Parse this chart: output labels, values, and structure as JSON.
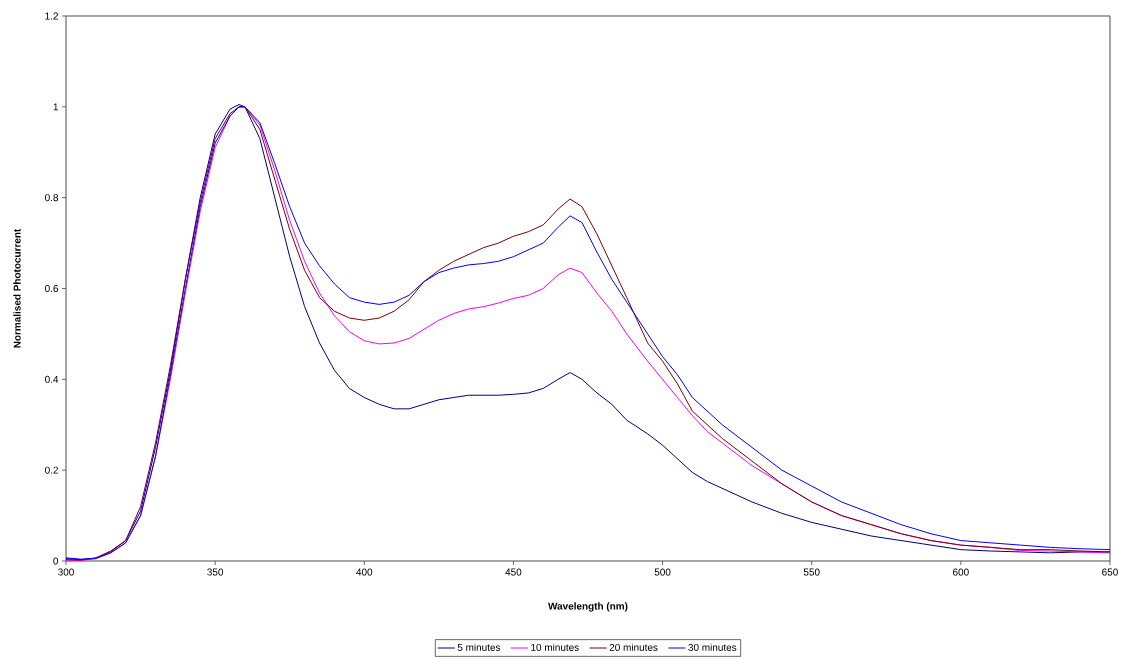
{
  "chart_data": {
    "type": "line",
    "xlabel": "Wavelength (nm)",
    "ylabel": "Normalised Photocurrent",
    "x": [
      300,
      305,
      310,
      315,
      320,
      325,
      330,
      335,
      340,
      345,
      350,
      355,
      358,
      360,
      365,
      370,
      375,
      380,
      385,
      390,
      395,
      400,
      405,
      410,
      415,
      420,
      425,
      430,
      435,
      440,
      445,
      450,
      455,
      460,
      465,
      469,
      473,
      478,
      483,
      488,
      495,
      500,
      505,
      510,
      515,
      520,
      530,
      540,
      550,
      560,
      570,
      580,
      590,
      600,
      610,
      620,
      630,
      640,
      650
    ],
    "series": [
      {
        "name": "5 minutes",
        "color": "#000080",
        "values": [
          0.005,
          0.003,
          0.006,
          0.02,
          0.045,
          0.11,
          0.25,
          0.42,
          0.62,
          0.8,
          0.94,
          0.995,
          1.005,
          1.0,
          0.93,
          0.8,
          0.67,
          0.56,
          0.48,
          0.42,
          0.38,
          0.36,
          0.345,
          0.335,
          0.335,
          0.345,
          0.355,
          0.36,
          0.365,
          0.365,
          0.365,
          0.367,
          0.37,
          0.38,
          0.4,
          0.415,
          0.4,
          0.37,
          0.345,
          0.31,
          0.28,
          0.255,
          0.225,
          0.195,
          0.175,
          0.16,
          0.13,
          0.105,
          0.085,
          0.07,
          0.055,
          0.045,
          0.035,
          0.025,
          0.022,
          0.02,
          0.018,
          0.02,
          0.02
        ]
      },
      {
        "name": "10 minutes",
        "color": "#ff00ff",
        "values": [
          0.002,
          0.001,
          0.005,
          0.018,
          0.04,
          0.1,
          0.23,
          0.4,
          0.59,
          0.77,
          0.91,
          0.98,
          1.0,
          1.0,
          0.96,
          0.86,
          0.75,
          0.66,
          0.59,
          0.54,
          0.505,
          0.485,
          0.478,
          0.48,
          0.49,
          0.51,
          0.53,
          0.545,
          0.555,
          0.56,
          0.568,
          0.578,
          0.585,
          0.6,
          0.63,
          0.645,
          0.635,
          0.59,
          0.55,
          0.5,
          0.44,
          0.4,
          0.36,
          0.32,
          0.285,
          0.26,
          0.21,
          0.17,
          0.13,
          0.1,
          0.08,
          0.06,
          0.045,
          0.035,
          0.03,
          0.023,
          0.022,
          0.02,
          0.018
        ]
      },
      {
        "name": "20 minutes",
        "color": "#800000",
        "values": [
          0.003,
          0.002,
          0.007,
          0.022,
          0.045,
          0.12,
          0.26,
          0.43,
          0.62,
          0.79,
          0.93,
          0.985,
          1.0,
          1.0,
          0.95,
          0.84,
          0.73,
          0.64,
          0.58,
          0.55,
          0.535,
          0.53,
          0.535,
          0.55,
          0.575,
          0.615,
          0.64,
          0.66,
          0.675,
          0.69,
          0.7,
          0.715,
          0.725,
          0.74,
          0.775,
          0.797,
          0.78,
          0.72,
          0.65,
          0.58,
          0.48,
          0.44,
          0.39,
          0.33,
          0.3,
          0.27,
          0.22,
          0.17,
          0.13,
          0.1,
          0.08,
          0.06,
          0.045,
          0.035,
          0.03,
          0.025,
          0.025,
          0.022,
          0.02
        ]
      },
      {
        "name": "30 minutes",
        "color": "#0000ff",
        "values": [
          0.007,
          0.004,
          0.006,
          0.018,
          0.04,
          0.1,
          0.23,
          0.41,
          0.6,
          0.78,
          0.92,
          0.98,
          1.0,
          1.0,
          0.965,
          0.875,
          0.78,
          0.7,
          0.65,
          0.61,
          0.58,
          0.57,
          0.565,
          0.57,
          0.585,
          0.615,
          0.635,
          0.645,
          0.652,
          0.655,
          0.66,
          0.67,
          0.685,
          0.7,
          0.735,
          0.76,
          0.745,
          0.68,
          0.62,
          0.57,
          0.5,
          0.45,
          0.41,
          0.36,
          0.33,
          0.3,
          0.25,
          0.2,
          0.165,
          0.13,
          0.105,
          0.08,
          0.06,
          0.045,
          0.04,
          0.035,
          0.03,
          0.027,
          0.025
        ]
      }
    ],
    "xlim": [
      300,
      650
    ],
    "xticks": [
      300,
      350,
      400,
      450,
      500,
      550,
      600,
      650
    ],
    "ylim": [
      0,
      1.2
    ],
    "yticks": [
      0,
      0.2,
      0.4,
      0.6,
      0.8,
      1,
      1.2
    ],
    "legend": "bottom",
    "line_style": "solid"
  }
}
